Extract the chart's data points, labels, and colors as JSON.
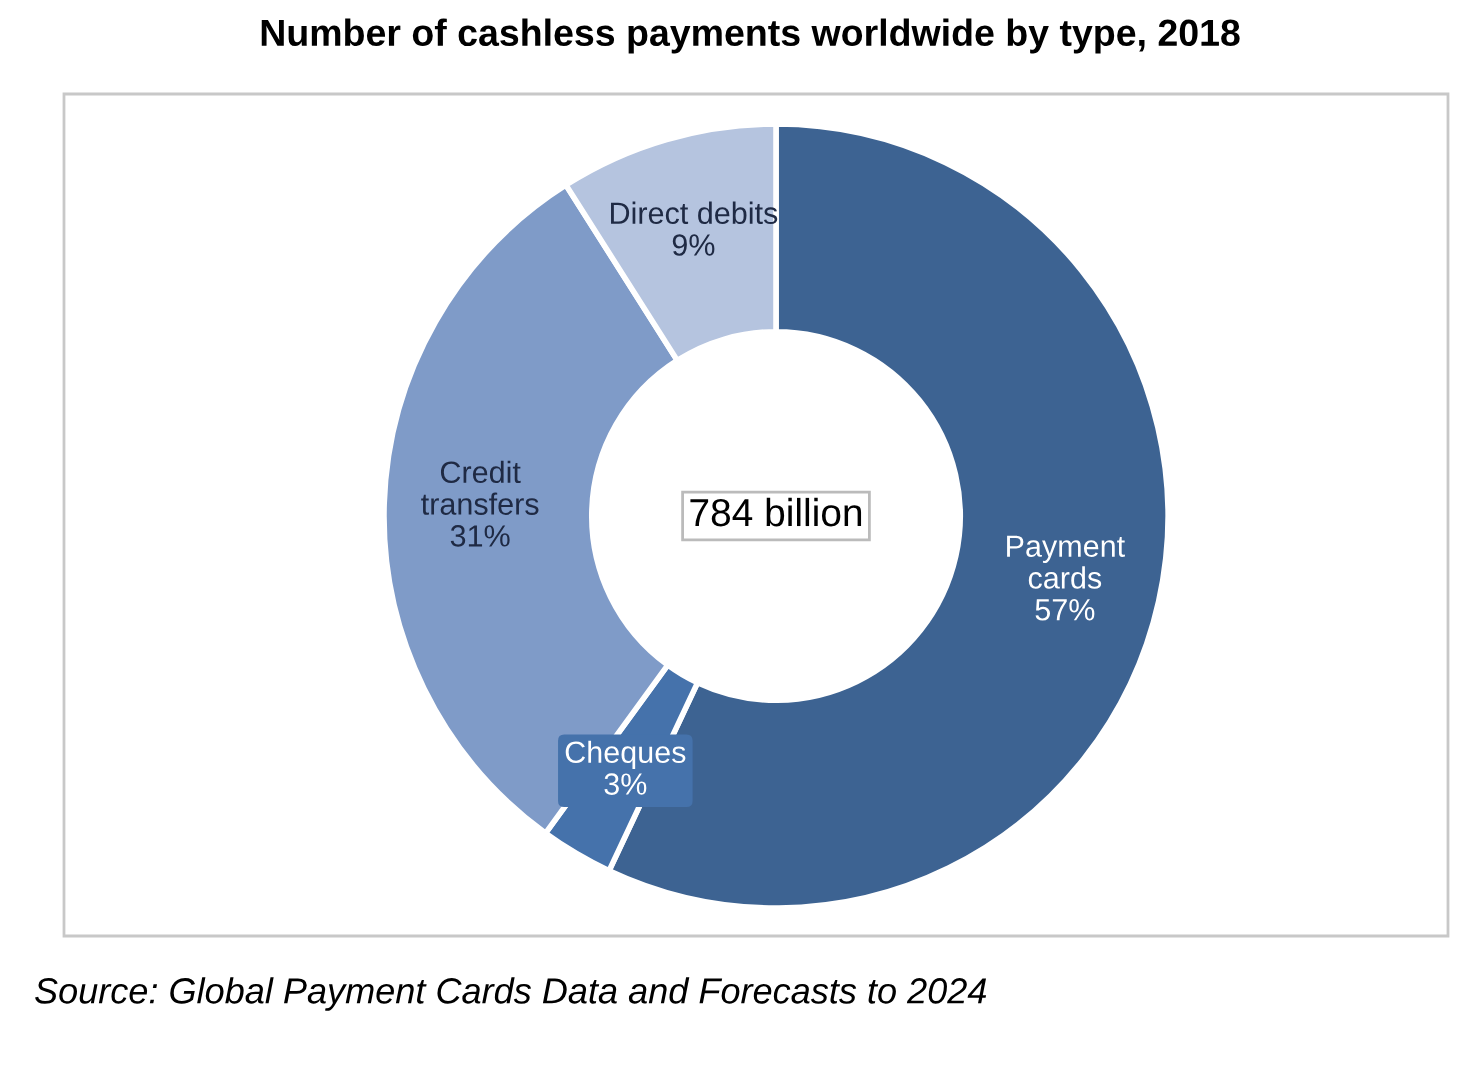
{
  "chart_data": {
    "type": "donut",
    "title": "Number of cashless payments worldwide by type, 2018",
    "categories": [
      "Payment\ncards",
      "Cheques",
      "Credit\ntransfers",
      "Direct debits"
    ],
    "values": [
      57,
      3,
      31,
      9
    ],
    "value_labels": [
      "57%",
      "3%",
      "31%",
      "9%"
    ],
    "colors": [
      "#3d6392",
      "#4572ab",
      "#7f9bc8",
      "#b5c4df"
    ],
    "legend": false,
    "annotations": [
      "784 billion",
      "Source: Global Payment Cards Data and Forecasts to 2024"
    ]
  }
}
